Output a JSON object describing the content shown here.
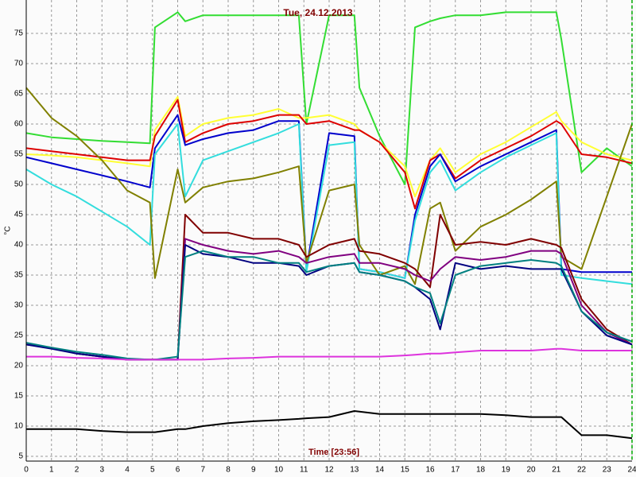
{
  "chart_data": {
    "type": "line",
    "title": "Tue, 24.12.2013",
    "xlabel": "Time [23:56]",
    "ylabel": "°C",
    "x": [
      0,
      1,
      2,
      3,
      4,
      4.9,
      5.1,
      6,
      6.3,
      7,
      8,
      9,
      10,
      10.8,
      11.1,
      12,
      13,
      13.2,
      14,
      15,
      15.4,
      16,
      16.4,
      17,
      18,
      19,
      20,
      21,
      21.2,
      22,
      23,
      24
    ],
    "series": [
      {
        "color": "#33dd33",
        "values": [
          58.5,
          57.8,
          57.5,
          57.2,
          57,
          56.8,
          76,
          78.5,
          77,
          78,
          78,
          78,
          78,
          78,
          60,
          78,
          78,
          66,
          58,
          50,
          76,
          77,
          77.5,
          78,
          78,
          78.5,
          78.5,
          78.5,
          74,
          52,
          56,
          53
        ]
      },
      {
        "color": "#ffff33",
        "values": [
          55,
          54.8,
          54.5,
          54,
          53.5,
          53,
          59,
          64.5,
          58,
          60,
          61,
          61.5,
          62.5,
          61,
          61,
          61.5,
          60,
          59,
          57,
          53,
          48,
          54,
          56,
          52,
          55,
          57,
          59.5,
          62,
          60.5,
          57,
          55,
          54
        ]
      },
      {
        "color": "#dd0000",
        "values": [
          56,
          55.5,
          55,
          54.5,
          54,
          54,
          58,
          64,
          57,
          58.5,
          60,
          60.5,
          61.5,
          61.5,
          60,
          60.5,
          59,
          59,
          57,
          52,
          46,
          54,
          55,
          51,
          54,
          56,
          58,
          60.5,
          60,
          55,
          54.5,
          53.5
        ]
      },
      {
        "color": "#0000cc",
        "values": [
          54.5,
          53.5,
          52.5,
          51.5,
          50.5,
          49.5,
          56,
          61.5,
          56.5,
          57.5,
          58.5,
          59,
          60.5,
          60.5,
          36,
          58.5,
          58,
          36,
          35.5,
          34.5,
          45,
          53,
          55,
          50.5,
          53,
          55,
          57,
          59,
          36,
          35.5,
          35.5,
          35.5
        ]
      },
      {
        "color": "#33dddd",
        "values": [
          52.5,
          50,
          48,
          45.5,
          43,
          40,
          55,
          60,
          48,
          54,
          55.5,
          57,
          58.5,
          60,
          35.5,
          56.5,
          57,
          36,
          35.5,
          34.5,
          44,
          52,
          54,
          49,
          52,
          54.5,
          56.5,
          58.5,
          35,
          34.5,
          34,
          33.5
        ]
      },
      {
        "color": "#808000",
        "values": [
          66,
          61,
          58,
          54,
          49,
          47,
          34.5,
          52.5,
          47,
          49.5,
          50.5,
          51,
          52,
          53,
          37,
          49,
          50,
          40,
          35,
          36.5,
          33.5,
          46,
          47,
          39,
          43,
          45,
          47.5,
          50.5,
          38,
          36,
          48,
          60
        ]
      },
      {
        "color": "#800000",
        "values": [
          23.5,
          23,
          22,
          21.5,
          21,
          21,
          21,
          21,
          45,
          42,
          42,
          41,
          41,
          40,
          38,
          40,
          41,
          39,
          38.5,
          37,
          36,
          33,
          45,
          40,
          40.5,
          40,
          41,
          40,
          39.5,
          31,
          26,
          23.5
        ]
      },
      {
        "color": "#800080",
        "values": [
          23.5,
          23,
          22,
          21.5,
          21,
          21,
          21,
          21,
          41,
          40,
          39,
          38.5,
          39,
          38,
          37,
          38,
          38.5,
          37,
          37,
          36,
          35,
          34,
          36,
          38,
          37.5,
          38,
          39,
          39,
          38.5,
          30,
          25.5,
          23.5
        ]
      },
      {
        "color": "#000080",
        "values": [
          23.5,
          22.8,
          22,
          21.5,
          21,
          21,
          21,
          21,
          40,
          38.5,
          38,
          37,
          37,
          36.5,
          35,
          36.5,
          37,
          35.5,
          35,
          34,
          33,
          31,
          26,
          37,
          36,
          36.5,
          36,
          36,
          36,
          29,
          25,
          23.5
        ]
      },
      {
        "color": "#008080",
        "values": [
          23.8,
          23,
          22.3,
          21.8,
          21.2,
          21,
          21,
          21.5,
          38,
          39,
          38,
          38,
          37,
          37,
          35.5,
          36.5,
          37,
          35.5,
          35,
          34,
          33,
          32,
          27,
          35,
          36.5,
          37,
          37.5,
          37,
          36.5,
          29,
          25.5,
          24
        ]
      },
      {
        "color": "#dd33dd",
        "values": [
          21.5,
          21.5,
          21.3,
          21.2,
          21,
          21,
          21,
          21,
          21,
          21,
          21.2,
          21.3,
          21.5,
          21.5,
          21.5,
          21.5,
          21.5,
          21.5,
          21.5,
          21.7,
          21.8,
          22,
          22,
          22.2,
          22.5,
          22.5,
          22.5,
          22.8,
          22.8,
          22.5,
          22.5,
          22.5
        ]
      },
      {
        "color": "#000000",
        "values": [
          9.5,
          9.5,
          9.5,
          9.2,
          9,
          9,
          9,
          9.5,
          9.5,
          10,
          10.5,
          10.8,
          11,
          11.2,
          11.3,
          11.5,
          12.5,
          12.4,
          12,
          12,
          12,
          12,
          12,
          12,
          12,
          11.8,
          11.5,
          11.5,
          11.5,
          8.5,
          8.5,
          8
        ]
      }
    ],
    "xlim": [
      0,
      24
    ],
    "xticks": [
      0,
      1,
      2,
      3,
      4,
      5,
      6,
      7,
      8,
      9,
      10,
      11,
      12,
      13,
      14,
      15,
      16,
      17,
      18,
      19,
      20,
      21,
      22,
      23,
      24
    ],
    "ylim": [
      5,
      80
    ],
    "yticks": [
      5,
      10,
      15,
      20,
      25,
      30,
      35,
      40,
      45,
      50,
      55,
      60,
      65,
      70,
      75
    ],
    "grid": true
  }
}
